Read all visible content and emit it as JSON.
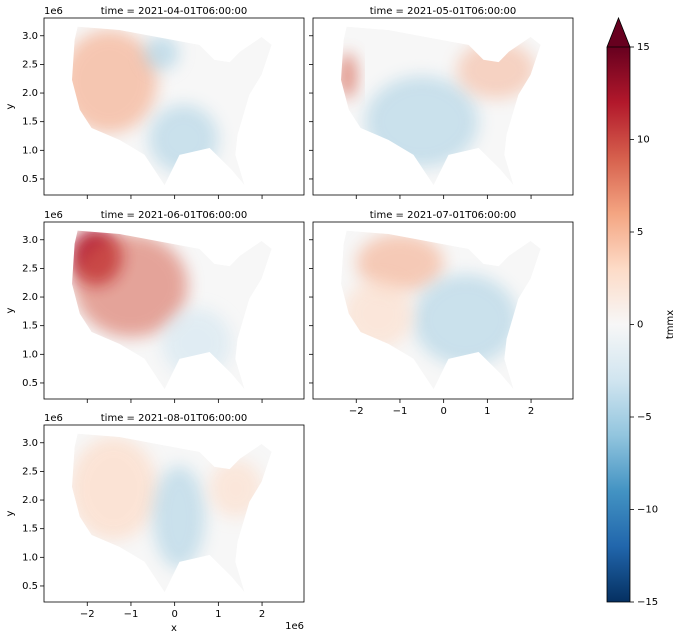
{
  "chart_data": {
    "type": "map",
    "panels": [
      {
        "title": "time = 2021-04-01T06:00:00"
      },
      {
        "title": "time = 2021-05-01T06:00:00"
      },
      {
        "title": "time = 2021-06-01T06:00:00"
      },
      {
        "title": "time = 2021-07-01T06:00:00"
      },
      {
        "title": "time = 2021-08-01T06:00:00"
      }
    ],
    "xlabel": "x",
    "ylabel": "y",
    "x_offset": "1e6",
    "y_offset": "1e6",
    "xlim": [
      -2.99,
      2.96
    ],
    "xticks": [
      {
        "value": -2,
        "label": "−2"
      },
      {
        "value": -1,
        "label": "−1"
      },
      0,
      1,
      2
    ],
    "ylim": [
      0.22,
      3.31
    ],
    "yticks": [
      0.5,
      {
        "value": 1,
        "label": "1.0"
      },
      1.5,
      {
        "value": 2,
        "label": "2.0"
      },
      2.5,
      {
        "value": 3,
        "label": "3.0"
      }
    ],
    "colorbar": {
      "label": "tmmx",
      "lim": [
        -15,
        15
      ],
      "ticks": [
        {
          "value": -15,
          "label": "−15"
        },
        {
          "value": -10,
          "label": "−10"
        },
        {
          "value": -5,
          "label": "−5"
        },
        0,
        5,
        10,
        15
      ],
      "extend": "max",
      "colormap": [
        "#053061",
        "#2166ac",
        "#4393c3",
        "#92c5de",
        "#d1e5f0",
        "#f7f7f7",
        "#fddbc7",
        "#f4a582",
        "#d6604d",
        "#b2182b",
        "#67001f"
      ]
    }
  }
}
